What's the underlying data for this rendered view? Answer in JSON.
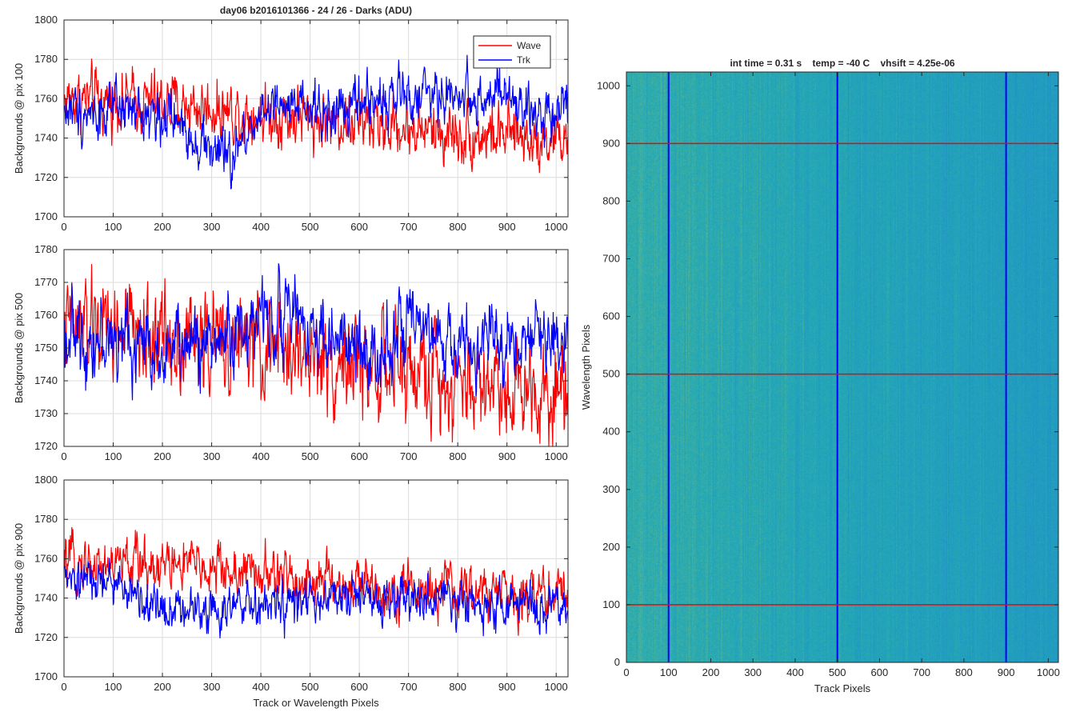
{
  "figure": {
    "left_title": "day06 b2016101366 - 24 / 26 - Darks (ADU)",
    "right_title": "int time = 0.31 s    temp = -40 C    vhsift = 4.25e-06"
  },
  "colors": {
    "wave": "#ff0000",
    "trk": "#0000ff",
    "grid": "#dcdcdc"
  },
  "chart_data": [
    {
      "type": "line",
      "title": "day06 b2016101366 - 24 / 26 - Darks (ADU)",
      "ylabel": "Backgrounds @ pix 100",
      "xlabel": "",
      "xlim": [
        0,
        1024
      ],
      "ylim": [
        1700,
        1800
      ],
      "xticks": [
        "0",
        "100",
        "200",
        "300",
        "400",
        "500",
        "600",
        "700",
        "800",
        "900",
        "1000"
      ],
      "yticks": [
        "1700",
        "1720",
        "1740",
        "1760",
        "1780",
        "1800"
      ],
      "legend": {
        "position": "top-right",
        "entries": [
          "Wave",
          "Trk"
        ]
      },
      "grid": true,
      "series": [
        {
          "name": "Wave",
          "color": "#ff0000",
          "trend": [
            [
              0,
              1760
            ],
            [
              200,
              1758
            ],
            [
              400,
              1752
            ],
            [
              600,
              1748
            ],
            [
              800,
              1742
            ],
            [
              1024,
              1740
            ]
          ],
          "noise": 8
        },
        {
          "name": "Trk",
          "color": "#0000ff",
          "trend": [
            [
              0,
              1754
            ],
            [
              100,
              1753
            ],
            [
              200,
              1752
            ],
            [
              300,
              1735
            ],
            [
              340,
              1728
            ],
            [
              400,
              1755
            ],
            [
              550,
              1752
            ],
            [
              600,
              1758
            ],
            [
              700,
              1762
            ],
            [
              800,
              1762
            ],
            [
              900,
              1760
            ],
            [
              950,
              1750
            ],
            [
              1024,
              1760
            ]
          ],
          "noise": 7
        }
      ]
    },
    {
      "type": "line",
      "title": "",
      "ylabel": "Backgrounds @ pix 500",
      "xlabel": "",
      "xlim": [
        0,
        1024
      ],
      "ylim": [
        1720,
        1780
      ],
      "xticks": [
        "0",
        "100",
        "200",
        "300",
        "400",
        "500",
        "600",
        "700",
        "800",
        "900",
        "1000"
      ],
      "yticks": [
        "1720",
        "1730",
        "1740",
        "1750",
        "1760",
        "1770",
        "1780"
      ],
      "grid": true,
      "series": [
        {
          "name": "Wave",
          "color": "#ff0000",
          "trend": [
            [
              0,
              1756
            ],
            [
              200,
              1754
            ],
            [
              400,
              1750
            ],
            [
              600,
              1745
            ],
            [
              800,
              1740
            ],
            [
              1024,
              1738
            ]
          ],
          "noise": 8
        },
        {
          "name": "Trk",
          "color": "#0000ff",
          "trend": [
            [
              0,
              1754
            ],
            [
              200,
              1750
            ],
            [
              300,
              1752
            ],
            [
              450,
              1762
            ],
            [
              550,
              1752
            ],
            [
              600,
              1748
            ],
            [
              700,
              1755
            ],
            [
              800,
              1750
            ],
            [
              900,
              1752
            ],
            [
              1024,
              1754
            ]
          ],
          "noise": 6
        }
      ]
    },
    {
      "type": "line",
      "title": "",
      "ylabel": "Backgrounds @ pix 900",
      "xlabel": "Track or Wavelength Pixels",
      "xlim": [
        0,
        1024
      ],
      "ylim": [
        1700,
        1800
      ],
      "xticks": [
        "0",
        "100",
        "200",
        "300",
        "400",
        "500",
        "600",
        "700",
        "800",
        "900",
        "1000"
      ],
      "yticks": [
        "1700",
        "1720",
        "1740",
        "1760",
        "1780",
        "1800"
      ],
      "grid": true,
      "series": [
        {
          "name": "Wave",
          "color": "#ff0000",
          "trend": [
            [
              0,
              1757
            ],
            [
              200,
              1758
            ],
            [
              400,
              1752
            ],
            [
              600,
              1746
            ],
            [
              800,
              1743
            ],
            [
              1024,
              1742
            ]
          ],
          "noise": 7
        },
        {
          "name": "Trk",
          "color": "#0000ff",
          "trend": [
            [
              0,
              1748
            ],
            [
              100,
              1748
            ],
            [
              150,
              1740
            ],
            [
              200,
              1735
            ],
            [
              400,
              1735
            ],
            [
              600,
              1740
            ],
            [
              800,
              1738
            ],
            [
              1024,
              1734
            ]
          ],
          "noise": 6
        }
      ]
    },
    {
      "type": "heatmap",
      "title": "int time = 0.31 s    temp = -40 C    vhsift = 4.25e-06",
      "xlabel": "Track Pixels",
      "ylabel": "Wavelength Pixels",
      "xlim": [
        0,
        1024
      ],
      "ylim": [
        0,
        1024
      ],
      "xticks": [
        "0",
        "100",
        "200",
        "300",
        "400",
        "500",
        "600",
        "700",
        "800",
        "900",
        "1000"
      ],
      "yticks": [
        "0",
        "100",
        "200",
        "300",
        "400",
        "500",
        "600",
        "700",
        "800",
        "900",
        "1000"
      ],
      "colormap": "parula",
      "vertical_lines": {
        "x": [
          100,
          500,
          900
        ],
        "color": "#0000ff"
      },
      "horizontal_lines": {
        "y": [
          100,
          500,
          900
        ],
        "color": "#ff0000"
      }
    }
  ]
}
